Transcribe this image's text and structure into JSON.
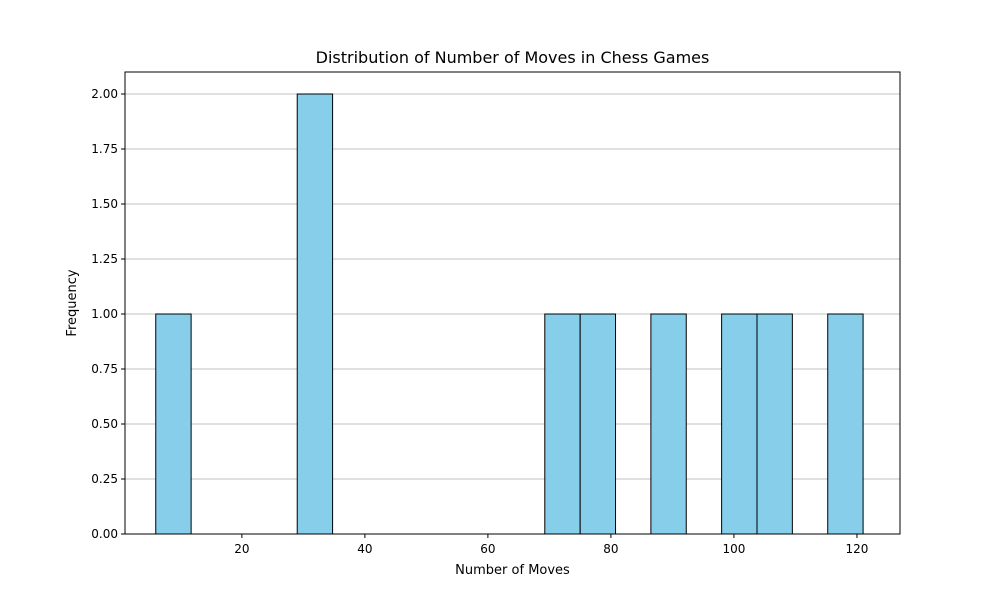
{
  "chart_data": {
    "type": "bar",
    "title": "Distribution of Number of Moves in Chess Games",
    "xlabel": "Number of Moves",
    "ylabel": "Frequency",
    "xlim": [
      1,
      127
    ],
    "ylim": [
      0,
      2.1
    ],
    "x_ticks": [
      20,
      40,
      60,
      80,
      100,
      120
    ],
    "y_ticks": [
      "0.00",
      "0.25",
      "0.50",
      "0.75",
      "1.00",
      "1.25",
      "1.50",
      "1.75",
      "2.00"
    ],
    "grid": "y-only",
    "bar_color": "#87ceeb",
    "edge_color": "#000000",
    "grid_color": "#c0c0c0",
    "bins": [
      {
        "start": 6.0,
        "end": 11.75,
        "count": 1
      },
      {
        "start": 29.0,
        "end": 34.75,
        "count": 2
      },
      {
        "start": 69.25,
        "end": 75.0,
        "count": 1
      },
      {
        "start": 75.0,
        "end": 80.75,
        "count": 1
      },
      {
        "start": 86.5,
        "end": 92.25,
        "count": 1
      },
      {
        "start": 98.0,
        "end": 103.75,
        "count": 1
      },
      {
        "start": 103.75,
        "end": 109.5,
        "count": 1
      },
      {
        "start": 115.25,
        "end": 121.0,
        "count": 1
      }
    ]
  }
}
